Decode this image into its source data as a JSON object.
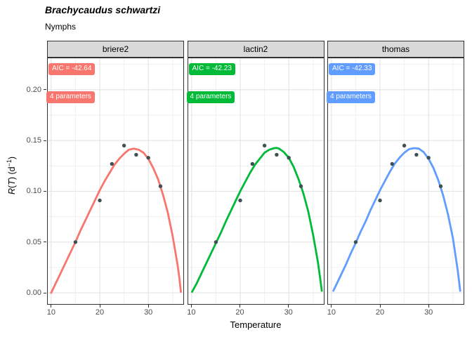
{
  "header": {
    "title": "Brachycaudus schwartzi",
    "subtitle": "Nymphs"
  },
  "axes": {
    "y": {
      "label_parts": {
        "r": "R",
        "open": "(",
        "t": "T",
        "mid": ") (d",
        "sup": "−1",
        "end": ")"
      },
      "tick_labels": [
        "0.00",
        "0.05",
        "0.10",
        "0.15",
        "0.20"
      ]
    },
    "x": {
      "tick_labels": [
        "10",
        "20",
        "30"
      ]
    }
  },
  "colors": {
    "red": "#F8766D",
    "green": "#00BA38",
    "blue": "#619CFF",
    "point": "#3E5052",
    "strip_bg": "#D9D9D9",
    "strip_border": "#333333",
    "panel_border": "#333333",
    "grid_major": "#E4E4E4",
    "grid_minor": "#F1F1F1",
    "tick_text": "#4D4D4D"
  },
  "chart_data": {
    "type": "line",
    "title": "Brachycaudus schwartzi",
    "subtitle": "Nymphs",
    "xlabel": "Temperature",
    "ylabel": "R(T) (d^-1)",
    "xlim": [
      9.3,
      37.2
    ],
    "ylim": [
      -0.011,
      0.231
    ],
    "x_ticks": [
      10,
      20,
      30
    ],
    "x_minor_ticks": [
      15,
      25,
      35
    ],
    "y_ticks": [
      0,
      0.05,
      0.1,
      0.15,
      0.2
    ],
    "y_minor_ticks": [
      0.025,
      0.075,
      0.125,
      0.175,
      0.225
    ],
    "grid": true,
    "legend": "none",
    "observed": {
      "temperature": [
        15,
        20,
        22.5,
        25,
        27.5,
        30,
        32.5
      ],
      "rate": [
        0.05,
        0.091,
        0.127,
        0.145,
        0.136,
        0.133,
        0.105
      ]
    },
    "facets": [
      {
        "name": "briere2",
        "aic": -42.64,
        "aic_label": "AIC = -42.64",
        "params_label": "4 parameters",
        "color": "#F8766D",
        "curve": [
          [
            10,
            0.0
          ],
          [
            11,
            0.01
          ],
          [
            12,
            0.02
          ],
          [
            13,
            0.03
          ],
          [
            14,
            0.04
          ],
          [
            15,
            0.05
          ],
          [
            16,
            0.061
          ],
          [
            17,
            0.071
          ],
          [
            18,
            0.081
          ],
          [
            19,
            0.091
          ],
          [
            20,
            0.101
          ],
          [
            21,
            0.11
          ],
          [
            22,
            0.118
          ],
          [
            23,
            0.126
          ],
          [
            24,
            0.132
          ],
          [
            25,
            0.137
          ],
          [
            26,
            0.141
          ],
          [
            27,
            0.142
          ],
          [
            28,
            0.141
          ],
          [
            29,
            0.138
          ],
          [
            30,
            0.132
          ],
          [
            31,
            0.123
          ],
          [
            32,
            0.112
          ],
          [
            33,
            0.097
          ],
          [
            34,
            0.079
          ],
          [
            35,
            0.056
          ],
          [
            36,
            0.028
          ],
          [
            36.4,
            0.014
          ],
          [
            36.7,
            0.001
          ]
        ]
      },
      {
        "name": "lactin2",
        "aic": -42.23,
        "aic_label": "AIC = -42.23",
        "params_label": "4 parameters",
        "color": "#00BA38",
        "curve": [
          [
            10.1,
            0.001
          ],
          [
            11,
            0.009
          ],
          [
            12,
            0.019
          ],
          [
            13,
            0.029
          ],
          [
            14,
            0.039
          ],
          [
            15,
            0.049
          ],
          [
            16,
            0.059
          ],
          [
            17,
            0.07
          ],
          [
            18,
            0.08
          ],
          [
            19,
            0.09
          ],
          [
            20,
            0.1
          ],
          [
            21,
            0.109
          ],
          [
            22,
            0.118
          ],
          [
            23,
            0.126
          ],
          [
            24,
            0.132
          ],
          [
            25,
            0.138
          ],
          [
            26,
            0.141
          ],
          [
            27,
            0.1425
          ],
          [
            27.5,
            0.1427
          ],
          [
            28,
            0.142
          ],
          [
            29,
            0.1385
          ],
          [
            30,
            0.133
          ],
          [
            31,
            0.124
          ],
          [
            32,
            0.112
          ],
          [
            33,
            0.098
          ],
          [
            34,
            0.08
          ],
          [
            35,
            0.057
          ],
          [
            36,
            0.03
          ],
          [
            36.8,
            0.002
          ]
        ]
      },
      {
        "name": "thomas",
        "aic": -42.33,
        "aic_label": "AIC = -42.33",
        "params_label": "4 parameters",
        "color": "#619CFF",
        "curve": [
          [
            10.4,
            0.002
          ],
          [
            11,
            0.008
          ],
          [
            12,
            0.018
          ],
          [
            13,
            0.028
          ],
          [
            14,
            0.039
          ],
          [
            15,
            0.049
          ],
          [
            16,
            0.06
          ],
          [
            17,
            0.07
          ],
          [
            18,
            0.081
          ],
          [
            19,
            0.091
          ],
          [
            20,
            0.101
          ],
          [
            21,
            0.11
          ],
          [
            22,
            0.119
          ],
          [
            23,
            0.127
          ],
          [
            24,
            0.133
          ],
          [
            25,
            0.138
          ],
          [
            26,
            0.1415
          ],
          [
            27,
            0.1425
          ],
          [
            28,
            0.142
          ],
          [
            29,
            0.1385
          ],
          [
            30,
            0.132
          ],
          [
            31,
            0.123
          ],
          [
            32,
            0.111
          ],
          [
            33,
            0.096
          ],
          [
            34,
            0.077
          ],
          [
            35,
            0.054
          ],
          [
            36,
            0.022
          ],
          [
            36.5,
            0.002
          ]
        ]
      }
    ]
  }
}
